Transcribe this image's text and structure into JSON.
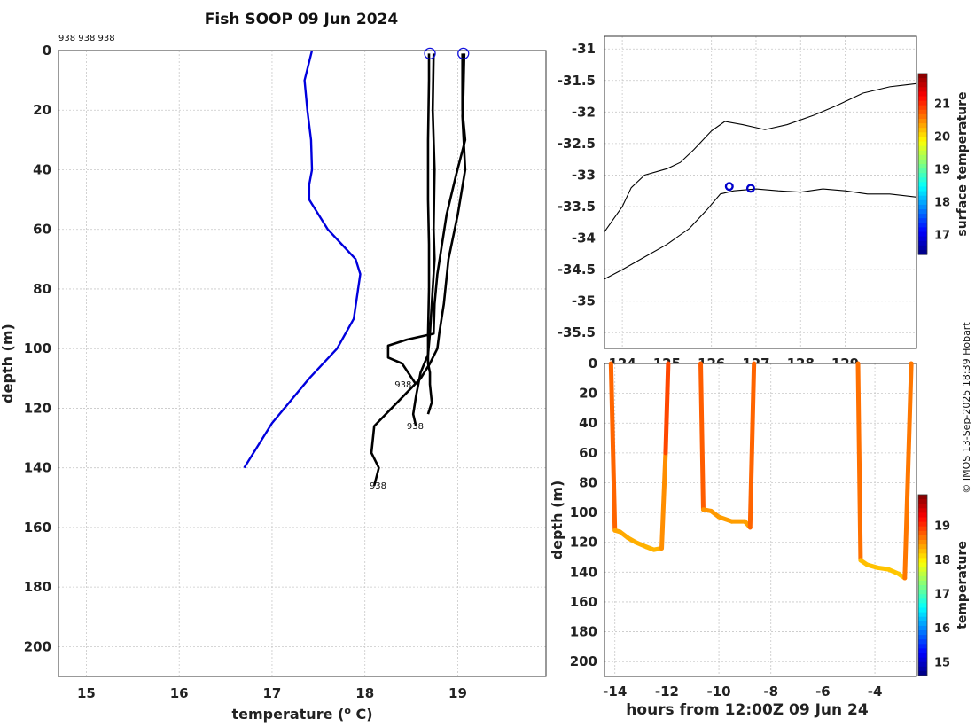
{
  "title": "Fish SOOP 09 Jun 2024",
  "credit": "© IMOS 13-Sep-2025 18:39 Hobart",
  "chart_data": [
    {
      "id": "profiles",
      "type": "line",
      "xlabel": "temperature (° C)",
      "ylabel": "depth (m)",
      "xlim": [
        14.7,
        19.95
      ],
      "ylim": [
        0,
        210
      ],
      "xticks": [
        15,
        16,
        17,
        18,
        19
      ],
      "yticks": [
        0,
        20,
        40,
        60,
        80,
        100,
        120,
        140,
        160,
        180,
        200
      ],
      "y_inverted": true,
      "grid": true,
      "top_labels": "938 938 938",
      "bottom_labels": [
        {
          "text": "938",
          "x": 18.32,
          "y": 113
        },
        {
          "text": "938",
          "x": 18.45,
          "y": 127
        },
        {
          "text": "938",
          "x": 18.05,
          "y": 147
        }
      ],
      "markers": [
        {
          "x": 18.7,
          "y": 1
        },
        {
          "x": 19.06,
          "y": 1
        }
      ],
      "series": [
        {
          "color": "#0000dd",
          "x": [
            17.43,
            17.35,
            17.38,
            17.42,
            17.43,
            17.4,
            17.4,
            17.6,
            17.9,
            17.95,
            17.88,
            17.7,
            17.4,
            17.0,
            16.7
          ],
          "y": [
            0,
            10,
            20,
            30,
            40,
            45,
            50,
            60,
            70,
            75,
            90,
            100,
            110,
            125,
            140
          ]
        },
        {
          "color": "#000000",
          "x": [
            18.69,
            18.69,
            18.68,
            18.68,
            18.69,
            18.69,
            18.68,
            18.68,
            18.7,
            18.7,
            18.72,
            18.68
          ],
          "y": [
            1,
            10,
            30,
            50,
            65,
            80,
            95,
            105,
            108,
            112,
            118,
            122
          ]
        },
        {
          "color": "#000000",
          "x": [
            18.74,
            18.73,
            18.75,
            18.74,
            18.75,
            18.72,
            18.7,
            18.68,
            18.6,
            18.55,
            18.52,
            18.55
          ],
          "y": [
            1,
            20,
            40,
            60,
            70,
            85,
            95,
            102,
            108,
            116,
            122,
            126
          ]
        },
        {
          "color": "#000000",
          "x": [
            19.05,
            19.05,
            19.08,
            18.98,
            18.88,
            18.78,
            18.75,
            18.74,
            18.45,
            18.25,
            18.25,
            18.4,
            18.55
          ],
          "y": [
            1,
            20,
            30,
            42,
            55,
            75,
            85,
            95,
            97,
            99,
            103,
            105,
            112
          ]
        },
        {
          "color": "#000000",
          "x": [
            19.07,
            19.06,
            19.05,
            19.08,
            19.0,
            18.9,
            18.85,
            18.8,
            18.78,
            18.7,
            18.6,
            18.1,
            18.07,
            18.15,
            18.1
          ],
          "y": [
            1,
            15,
            22,
            40,
            55,
            70,
            85,
            95,
            100,
            105,
            110,
            126,
            135,
            140,
            146
          ]
        }
      ]
    },
    {
      "id": "map",
      "type": "scatter",
      "xlim": [
        123.6,
        130.6
      ],
      "ylim": [
        -35.75,
        -30.8
      ],
      "xticks": [
        124,
        125,
        126,
        127,
        128,
        129
      ],
      "yticks": [
        -31,
        -31.5,
        -32,
        -32.5,
        -33,
        -33.5,
        -34,
        -34.5,
        -35,
        -35.5
      ],
      "ytick_labels": [
        "-31",
        "-31.5",
        "-32",
        "-32.5",
        "-33",
        "-33.5",
        "-34",
        "-34.5",
        "-35",
        "-35.5"
      ],
      "xtick_labels": [
        "124",
        "125",
        "126",
        "127",
        "128",
        "129"
      ],
      "grid": true,
      "points": [
        {
          "x": 126.4,
          "y": -33.18
        },
        {
          "x": 126.88,
          "y": -33.21
        }
      ],
      "coast_upper": {
        "x": [
          123.6,
          123.8,
          124.0,
          124.2,
          124.5,
          125.0,
          125.3,
          125.6,
          126.0,
          126.3,
          126.7,
          127.2,
          127.7,
          128.3,
          128.8,
          129.4,
          130.0,
          130.6
        ],
        "y": [
          -33.9,
          -33.7,
          -33.5,
          -33.2,
          -33.0,
          -32.9,
          -32.8,
          -32.6,
          -32.3,
          -32.15,
          -32.2,
          -32.28,
          -32.2,
          -32.05,
          -31.9,
          -31.7,
          -31.6,
          -31.55
        ]
      },
      "coast_lower": {
        "x": [
          123.6,
          124.0,
          124.5,
          125.0,
          125.5,
          125.9,
          126.2,
          126.5,
          127.0,
          127.5,
          128.0,
          128.5,
          129.0,
          129.5,
          130.0,
          130.6
        ],
        "y": [
          -34.65,
          -34.5,
          -34.3,
          -34.1,
          -33.85,
          -33.55,
          -33.3,
          -33.25,
          -33.22,
          -33.25,
          -33.27,
          -33.22,
          -33.25,
          -33.3,
          -33.3,
          -33.35
        ]
      },
      "colorbar": {
        "label": "surface temperature",
        "ticks": [
          "21",
          "20",
          "19",
          "18",
          "17"
        ],
        "range": [
          16.4,
          21.9
        ],
        "tick_values": [
          21,
          20,
          19,
          18,
          17
        ]
      }
    },
    {
      "id": "time_depth",
      "type": "line",
      "xlabel": "hours from 12:00Z 09 Jun 24",
      "ylabel": "depth (m)",
      "xlim": [
        -14.4,
        -2.4
      ],
      "ylim": [
        0,
        210
      ],
      "y_inverted": true,
      "xticks": [
        -14,
        -12,
        -10,
        -8,
        -6,
        -4
      ],
      "yticks": [
        0,
        20,
        40,
        60,
        80,
        100,
        120,
        140,
        160,
        180,
        200
      ],
      "grid": true,
      "segments": [
        {
          "x": [
            -14.15,
            -14.0,
            -13.8,
            -13.5,
            -13.2,
            -12.8,
            -12.5,
            -12.2,
            -12.05,
            -11.95
          ],
          "y": [
            0,
            112,
            113,
            117,
            120,
            123,
            125,
            124,
            60,
            0
          ]
        },
        {
          "x": [
            -10.7,
            -10.6,
            -10.3,
            -10.0,
            -9.5,
            -9.0,
            -8.8,
            -8.65
          ],
          "y": [
            0,
            98,
            99,
            103,
            106,
            106,
            110,
            0
          ]
        },
        {
          "x": [
            -4.65,
            -4.55,
            -4.3,
            -3.9,
            -3.5,
            -3.1,
            -2.85,
            -2.6
          ],
          "y": [
            0,
            132,
            135,
            137,
            138,
            141,
            144,
            0
          ]
        }
      ],
      "colorbar": {
        "label": "temperature",
        "ticks": [
          "19",
          "18",
          "17",
          "16",
          "15"
        ],
        "range": [
          14.6,
          19.9
        ],
        "tick_values": [
          19,
          18,
          17,
          16,
          15
        ]
      }
    }
  ]
}
